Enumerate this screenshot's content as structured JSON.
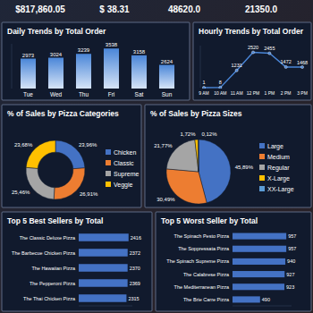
{
  "kpis": [
    "$817,860.05",
    "$ 38.31",
    "48620.0",
    "21350.0"
  ],
  "chart_data": [
    {
      "type": "bar",
      "title": "Daily Trends by Total Order",
      "categories": [
        "Tue",
        "Wed",
        "Thu",
        "Fri",
        "Sat",
        "Sun"
      ],
      "values": [
        2973,
        3024,
        3239,
        3538,
        3158,
        2624
      ],
      "color": "#4a86d8",
      "ylim": [
        1300,
        3800
      ],
      "data_labels": true,
      "tick_labels": "x"
    },
    {
      "type": "line",
      "title": "Hourly Trends by Total Order",
      "categories": [
        "9 AM",
        "10 AM",
        "11 AM",
        "12 PM",
        "1 PM",
        "2 PM",
        "3 PM"
      ],
      "values": [
        1,
        8,
        1231,
        2520,
        2455,
        1472,
        1468
      ],
      "color": "#4a86d8",
      "ylim": [
        0,
        3000
      ],
      "data_labels": true,
      "marker": "circle",
      "tick_labels": "x"
    },
    {
      "type": "donut",
      "title": "% of Sales by Pizza Categories",
      "categories": [
        "Chicken",
        "Classic",
        "Supreme",
        "Veggie"
      ],
      "values": [
        23.96,
        26.91,
        25.46,
        23.68
      ],
      "value_labels": [
        "23,96%",
        "26,91%",
        "25,46%",
        "23,68%"
      ],
      "colors": [
        "#4472c4",
        "#ed7d31",
        "#a5a5a5",
        "#ffc000"
      ],
      "data_labels": true,
      "legend": "right"
    },
    {
      "type": "pie",
      "title": "% of Sales by Pizza Sizes",
      "categories": [
        "Large",
        "Medium",
        "Regular",
        "X-Large",
        "XX-Large"
      ],
      "values": [
        45.89,
        30.49,
        21.77,
        1.72,
        0.12
      ],
      "value_labels": [
        "45,89%",
        "30,49%",
        "21,77%",
        "1,72%",
        "0,12%"
      ],
      "colors": [
        "#4472c4",
        "#ed7d31",
        "#a5a5a5",
        "#ffc000",
        "#5b9bd5"
      ],
      "data_labels": true,
      "legend": "right"
    },
    {
      "type": "bar",
      "orientation": "horizontal",
      "title": "Top 5 Best Sellers by Total",
      "categories": [
        "The Classic Deluxe Pizza",
        "The Barbecue Chicken Pizza",
        "The Hawaiian Pizza",
        "The Pepperoni Pizza",
        "The Thai Chicken Pizza"
      ],
      "values": [
        2416,
        2372,
        2370,
        2369,
        2315
      ],
      "color": "#4472c4",
      "xlim": [
        0,
        2600
      ],
      "data_labels": true,
      "tick_labels": "y"
    },
    {
      "type": "bar",
      "orientation": "horizontal",
      "title": "Top 5 Worst Seller by Total",
      "categories": [
        "The Spinach Pesto Pizza",
        "The Soppressata Pizza",
        "The Spinach Supreme Pizza",
        "The Calabrese Pizza",
        "The Mediterranean Pizza",
        "The Brie Carre Pizza"
      ],
      "values": [
        957,
        957,
        940,
        927,
        923,
        490
      ],
      "color": "#4472c4",
      "xlim": [
        0,
        1050
      ],
      "data_labels": true,
      "tick_labels": "y"
    }
  ]
}
